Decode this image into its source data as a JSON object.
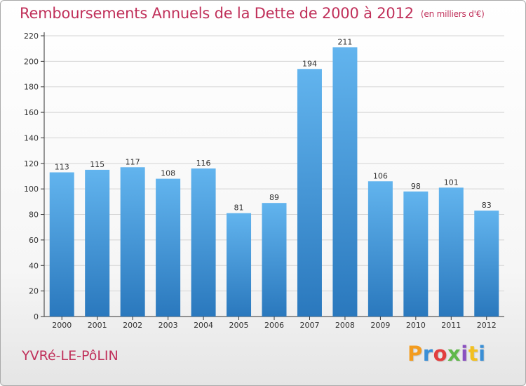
{
  "title": "Remboursements Annuels de la Dette de 2000 à 2012",
  "subtitle": "(en milliers d'€)",
  "town": "YVRé-LE-PôLIN",
  "logo": "Proxiti",
  "colors": {
    "title": "#c0305a",
    "bar_top": "#62b4ee",
    "bar_bottom": "#2a78bd",
    "grid": "#d4d4d4",
    "axis": "#333333"
  },
  "chart_data": {
    "type": "bar",
    "title": "Remboursements Annuels de la Dette de 2000 à 2012",
    "subtitle": "(en milliers d'€)",
    "categories": [
      "2000",
      "2001",
      "2002",
      "2003",
      "2004",
      "2005",
      "2006",
      "2007",
      "2008",
      "2009",
      "2010",
      "2011",
      "2012"
    ],
    "values": [
      113,
      115,
      117,
      108,
      116,
      81,
      89,
      194,
      211,
      106,
      98,
      101,
      83
    ],
    "xlabel": "",
    "ylabel": "",
    "ylim": [
      0,
      220
    ],
    "yticks": [
      0,
      20,
      40,
      60,
      80,
      100,
      120,
      140,
      160,
      180,
      200,
      220
    ],
    "grid": true,
    "data_labels": true
  }
}
